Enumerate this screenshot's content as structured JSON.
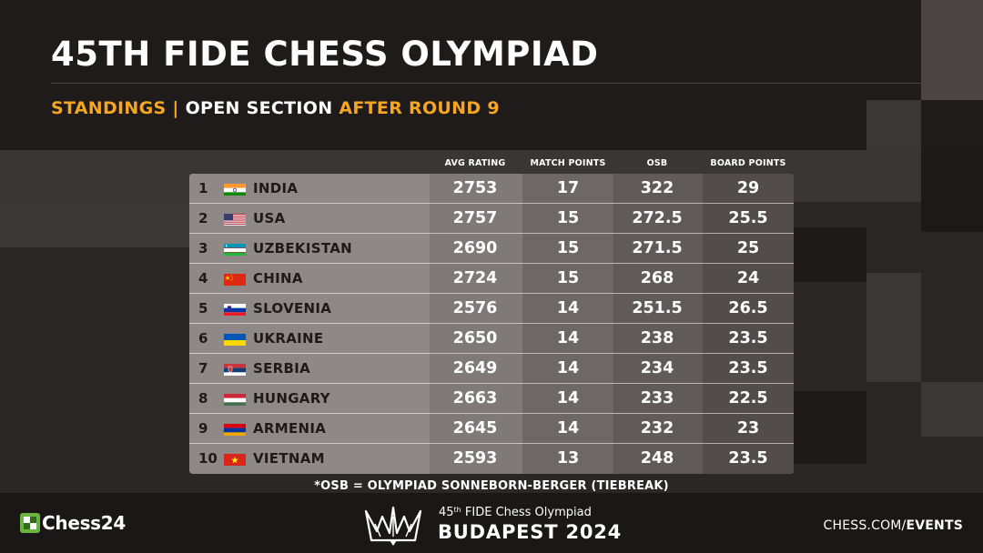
{
  "header": {
    "title": "45TH FIDE CHESS OLYMPIAD",
    "subtitle_part1": "STANDINGS |",
    "subtitle_part2": "OPEN SECTION",
    "subtitle_part3": "AFTER ROUND 9"
  },
  "table": {
    "columns": [
      "AVG RATING",
      "MATCH POINTS",
      "OSB",
      "BOARD POINTS"
    ],
    "rows": [
      {
        "rank": "1",
        "country": "INDIA",
        "flag": "india-flag-icon",
        "avg_rating": "2753",
        "match_points": "17",
        "osb": "322",
        "board_points": "29"
      },
      {
        "rank": "2",
        "country": "USA",
        "flag": "usa-flag-icon",
        "avg_rating": "2757",
        "match_points": "15",
        "osb": "272.5",
        "board_points": "25.5"
      },
      {
        "rank": "3",
        "country": "UZBEKISTAN",
        "flag": "uzbekistan-flag-icon",
        "avg_rating": "2690",
        "match_points": "15",
        "osb": "271.5",
        "board_points": "25"
      },
      {
        "rank": "4",
        "country": "CHINA",
        "flag": "china-flag-icon",
        "avg_rating": "2724",
        "match_points": "15",
        "osb": "268",
        "board_points": "24"
      },
      {
        "rank": "5",
        "country": "SLOVENIA",
        "flag": "slovenia-flag-icon",
        "avg_rating": "2576",
        "match_points": "14",
        "osb": "251.5",
        "board_points": "26.5"
      },
      {
        "rank": "6",
        "country": "UKRAINE",
        "flag": "ukraine-flag-icon",
        "avg_rating": "2650",
        "match_points": "14",
        "osb": "238",
        "board_points": "23.5"
      },
      {
        "rank": "7",
        "country": "SERBIA",
        "flag": "serbia-flag-icon",
        "avg_rating": "2649",
        "match_points": "14",
        "osb": "234",
        "board_points": "23.5"
      },
      {
        "rank": "8",
        "country": "HUNGARY",
        "flag": "hungary-flag-icon",
        "avg_rating": "2663",
        "match_points": "14",
        "osb": "233",
        "board_points": "22.5"
      },
      {
        "rank": "9",
        "country": "ARMENIA",
        "flag": "armenia-flag-icon",
        "avg_rating": "2645",
        "match_points": "14",
        "osb": "232",
        "board_points": "23"
      },
      {
        "rank": "10",
        "country": "VIETNAM",
        "flag": "vietnam-flag-icon",
        "avg_rating": "2593",
        "match_points": "13",
        "osb": "248",
        "board_points": "23.5"
      }
    ],
    "footnote": "*OSB = OLYMPIAD SONNEBORN-BERGER (TIEBREAK)"
  },
  "footer": {
    "left_brand": "Chess24",
    "event_line_prefix": "45",
    "event_line_sup": "th",
    "event_line_suffix": " FIDE Chess Olympiad",
    "event_name": "BUDAPEST 2024",
    "right_brand_part1": "CHESS.COM/",
    "right_brand_part2": "EVENTS"
  },
  "colors": {
    "accent": "#f5a623",
    "table_bg": "#8a8583",
    "logo_green": "#6cb33f"
  }
}
